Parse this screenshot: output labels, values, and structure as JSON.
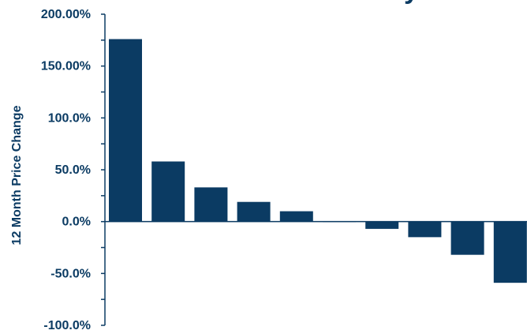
{
  "chart_data": {
    "type": "bar",
    "title_fragment": "y",
    "ylabel": "12 Month Price Change",
    "ylim": [
      -100,
      200
    ],
    "yticks": [
      {
        "value": 200,
        "label": "200.00%"
      },
      {
        "value": 150,
        "label": "150.00%"
      },
      {
        "value": 100,
        "label": "100.0%"
      },
      {
        "value": 50,
        "label": "50.0%"
      },
      {
        "value": 0,
        "label": "0.0%"
      },
      {
        "value": -50,
        "label": "-50.0%"
      },
      {
        "value": -100,
        "label": "-100.0%"
      }
    ],
    "minor_tick_step": 25,
    "grid": false,
    "values": [
      176,
      58,
      33,
      19,
      10,
      0,
      -7,
      -15,
      -32,
      -59
    ],
    "colors": {
      "bar": "#0b3b63",
      "axis": "#0b3b63",
      "text": "#0b3b63"
    }
  }
}
